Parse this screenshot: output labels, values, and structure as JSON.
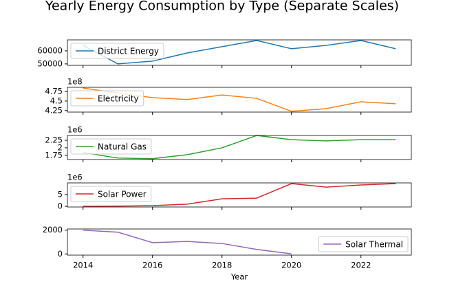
{
  "title": "Yearly Energy Consumption by Type (Separate Scales)",
  "chart_data": [
    {
      "type": "line",
      "x": [
        2014,
        2015,
        2016,
        2017,
        2018,
        2019,
        2020,
        2021,
        2022,
        2023
      ],
      "series": [
        {
          "name": "District Energy",
          "color": "#1f77b4",
          "values": [
            64200,
            50000,
            52100,
            58400,
            63200,
            67900,
            61600,
            64200,
            67900,
            61600
          ]
        }
      ],
      "xlim": [
        2013.55,
        2023.45
      ],
      "xticks": [
        2014,
        2016,
        2018,
        2020,
        2022
      ],
      "ylim": [
        48900,
        68400
      ],
      "yticks": [
        50000,
        60000
      ],
      "legend": "upper left"
    },
    {
      "type": "line",
      "x": [
        2014,
        2015,
        2016,
        2017,
        2018,
        2019,
        2020,
        2021,
        2022,
        2023
      ],
      "series": [
        {
          "name": "Electricity",
          "color": "#ff7f0e",
          "values": [
            4.84,
            4.71,
            4.59,
            4.54,
            4.66,
            4.57,
            4.23,
            4.3,
            4.48,
            4.43
          ]
        }
      ],
      "offset_label": "1e8",
      "xlim": [
        2013.55,
        2023.45
      ],
      "xticks": [
        2014,
        2016,
        2018,
        2020,
        2022
      ],
      "ylim": [
        4.21,
        4.86
      ],
      "yticks": [
        4.25,
        4.5,
        4.75
      ],
      "legend": "upper left"
    },
    {
      "type": "line",
      "x": [
        2014,
        2015,
        2016,
        2017,
        2018,
        2019,
        2020,
        2021,
        2022,
        2023
      ],
      "series": [
        {
          "name": "Natural Gas",
          "color": "#2ca02c",
          "values": [
            1.84,
            1.66,
            1.64,
            1.77,
            2.0,
            2.41,
            2.27,
            2.23,
            2.27,
            2.27
          ]
        }
      ],
      "offset_label": "1e6",
      "xlim": [
        2013.55,
        2023.45
      ],
      "xticks": [
        2014,
        2016,
        2018,
        2020,
        2022
      ],
      "ylim": [
        1.61,
        2.41
      ],
      "yticks": [
        1.75,
        2.0,
        2.25
      ],
      "legend": "upper left"
    },
    {
      "type": "line",
      "x": [
        2014,
        2015,
        2016,
        2017,
        2018,
        2019,
        2020,
        2021,
        2022,
        2023
      ],
      "series": [
        {
          "name": "Solar Power",
          "color": "#d62728",
          "values": [
            0,
            0.05,
            0.3,
            0.9,
            3.2,
            3.5,
            9.7,
            8.2,
            9.1,
            9.7
          ]
        }
      ],
      "offset_label": "1e6",
      "xlim": [
        2013.55,
        2023.45
      ],
      "xticks": [
        2014,
        2016,
        2018,
        2020,
        2022
      ],
      "ylim": [
        -0.3,
        10
      ],
      "yticks": [
        0,
        5
      ],
      "legend": "upper left"
    },
    {
      "type": "line",
      "x": [
        2014,
        2015,
        2016,
        2017,
        2018,
        2019,
        2020,
        2021,
        2022,
        2023
      ],
      "series": [
        {
          "name": "Solar Thermal",
          "color": "#9467bd",
          "values": [
            2000,
            1830,
            950,
            1050,
            880,
            380,
            10,
            null,
            null,
            null
          ]
        }
      ],
      "xlabel": "Year",
      "xlim": [
        2013.55,
        2023.45
      ],
      "xticks": [
        2014,
        2016,
        2018,
        2020,
        2022
      ],
      "ylim": [
        -100,
        2100
      ],
      "yticks": [
        0,
        2000
      ],
      "legend": "lower right"
    }
  ]
}
